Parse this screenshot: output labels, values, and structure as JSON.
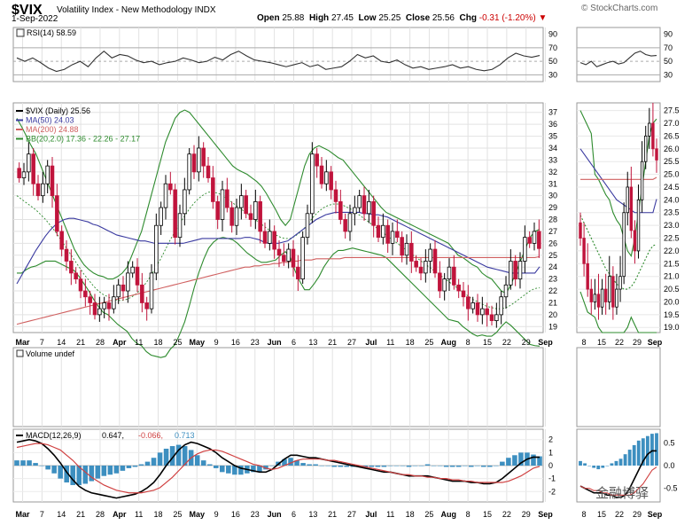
{
  "header": {
    "symbol": "$VIX",
    "name": "Volatility Index - New Methodology",
    "exchange": "INDX",
    "date": "1-Sep-2022",
    "source": "© StockCharts.com",
    "open_label": "Open",
    "open": "25.88",
    "high_label": "High",
    "high": "27.45",
    "low_label": "Low",
    "low": "25.25",
    "close_label": "Close",
    "close": "25.56",
    "chg_label": "Chg",
    "chg": "-0.31 (-1.20%)"
  },
  "watermark": "金融博驿",
  "colors": {
    "up": "#000000",
    "down": "#c0143c",
    "ma50": "#3a3aa0",
    "ma200": "#d06060",
    "bb": "#2e8b2e",
    "rsi": "#333333",
    "hist": "#3d8fc0",
    "macd": "#000000",
    "signal": "#d04040"
  },
  "chart_data": [
    {
      "panel": "rsi",
      "type": "line",
      "legend": "RSI(14) 58.59",
      "y_ticks": [
        90,
        70,
        50,
        30
      ],
      "levels": [
        70,
        50,
        30
      ],
      "values": [
        55,
        50,
        55,
        48,
        40,
        35,
        38,
        45,
        50,
        42,
        55,
        65,
        55,
        60,
        58,
        52,
        48,
        50,
        45,
        48,
        50,
        55,
        52,
        48,
        50,
        56,
        52,
        60,
        65,
        58,
        52,
        50,
        48,
        45,
        42,
        45,
        48,
        42,
        45,
        38,
        40,
        42,
        50,
        60,
        55,
        58,
        50,
        48,
        52,
        45,
        40,
        42,
        38,
        40,
        42,
        45,
        40,
        42,
        38,
        36,
        38,
        45,
        55,
        62,
        58,
        56,
        58.59
      ]
    },
    {
      "panel": "price",
      "type": "candlestick",
      "legend": [
        "$VIX (Daily) 25.56",
        "MA(50) 24.03",
        "MA(200) 24.88",
        "BB(20,2.0) 17.36 - 22.26 - 27.17"
      ],
      "y_ticks": [
        19,
        20,
        21,
        22,
        23,
        24,
        25,
        26,
        27,
        28,
        29,
        30,
        31,
        32,
        33,
        34,
        35,
        36,
        37
      ],
      "x_ticks": [
        "Mar",
        "7",
        "14",
        "21",
        "28",
        "Apr",
        "11",
        "18",
        "25",
        "May",
        "9",
        "16",
        "23",
        "Jun",
        "6",
        "13",
        "21",
        "27",
        "Jul",
        "11",
        "18",
        "25",
        "Aug",
        "8",
        "15",
        "22",
        "29",
        "Sep"
      ],
      "close": [
        31.5,
        32.0,
        33.5,
        31.0,
        30.0,
        31.0,
        32.5,
        30.0,
        27.0,
        25.5,
        24.5,
        23.5,
        23.0,
        22.0,
        21.5,
        21.0,
        20.0,
        20.5,
        21.0,
        20.5,
        21.5,
        22.5,
        22.0,
        23.5,
        24.0,
        22.5,
        21.0,
        20.5,
        23.5,
        27.5,
        29.0,
        31.0,
        30.5,
        26.5,
        28.5,
        30.5,
        33.5,
        32.0,
        34.0,
        32.5,
        31.5,
        29.5,
        28.0,
        30.5,
        29.0,
        27.5,
        29.0,
        30.0,
        28.5,
        28.0,
        29.5,
        27.0,
        26.0,
        27.0,
        25.5,
        25.0,
        24.5,
        25.5,
        24.0,
        23.0,
        26.5,
        28.5,
        33.5,
        32.5,
        31.0,
        32.0,
        30.5,
        29.5,
        28.0,
        27.0,
        28.5,
        29.0,
        30.0,
        28.5,
        29.5,
        27.5,
        26.5,
        27.5,
        26.0,
        27.0,
        26.5,
        25.0,
        26.0,
        24.5,
        24.0,
        23.5,
        24.5,
        25.5,
        23.5,
        22.0,
        23.0,
        24.0,
        22.5,
        22.0,
        21.5,
        20.5,
        21.0,
        20.0,
        20.5,
        20.0,
        19.5,
        20.0,
        21.5,
        22.5,
        24.5,
        23.0,
        24.5,
        26.5,
        26.0,
        27.0,
        25.56
      ],
      "ma50": [
        22.6,
        23.3,
        24.0,
        24.7,
        25.4,
        26.0,
        26.6,
        27.1,
        27.5,
        27.8,
        28.0,
        28.1,
        28.1,
        28.0,
        27.9,
        27.8,
        27.6,
        27.5,
        27.3,
        27.1,
        26.9,
        26.7,
        26.6,
        26.5,
        26.4,
        26.3,
        26.2,
        26.2,
        26.1,
        26.0,
        26.0,
        26.0,
        26.0,
        26.0,
        26.0,
        26.0,
        26.1,
        26.2,
        26.3,
        26.4,
        26.4,
        26.4,
        26.4,
        26.4,
        26.4,
        26.4,
        26.4,
        26.4,
        26.5,
        26.5,
        26.4,
        26.3,
        26.1,
        26.0,
        26.0,
        26.0,
        26.1,
        26.2,
        26.5,
        26.8,
        27.1,
        27.4,
        27.7,
        28.0,
        28.2,
        28.4,
        28.5,
        28.6,
        28.6,
        28.6,
        28.6,
        28.6,
        28.6,
        28.5,
        28.5,
        28.4,
        28.4,
        28.3,
        28.2,
        28.0,
        27.8,
        27.6,
        27.4,
        27.2,
        27.0,
        26.8,
        26.6,
        26.4,
        26.2,
        26.0,
        25.8,
        25.6,
        25.4,
        25.2,
        25.0,
        24.8,
        24.6,
        24.4,
        24.2,
        24.0,
        23.9,
        23.8,
        23.7,
        23.6,
        23.5,
        23.5,
        23.5,
        23.5,
        23.5,
        23.5,
        24.03
      ],
      "ma200": [
        19.2,
        19.3,
        19.4,
        19.5,
        19.6,
        19.7,
        19.8,
        19.9,
        20.0,
        20.1,
        20.2,
        20.3,
        20.4,
        20.5,
        20.6,
        20.7,
        20.8,
        20.9,
        21.0,
        21.1,
        21.2,
        21.3,
        21.4,
        21.5,
        21.6,
        21.7,
        21.8,
        21.9,
        22.0,
        22.1,
        22.2,
        22.3,
        22.4,
        22.5,
        22.6,
        22.7,
        22.8,
        22.9,
        23.0,
        23.1,
        23.2,
        23.3,
        23.4,
        23.5,
        23.6,
        23.7,
        23.8,
        23.9,
        24.0,
        24.0,
        24.1,
        24.1,
        24.2,
        24.2,
        24.3,
        24.3,
        24.4,
        24.4,
        24.5,
        24.5,
        24.6,
        24.6,
        24.6,
        24.7,
        24.7,
        24.7,
        24.7,
        24.7,
        24.7,
        24.8,
        24.8,
        24.8,
        24.8,
        24.8,
        24.8,
        24.8,
        24.8,
        24.8,
        24.8,
        24.8,
        24.8,
        24.8,
        24.8,
        24.8,
        24.8,
        24.8,
        24.8,
        24.8,
        24.8,
        24.8,
        24.8,
        24.8,
        24.8,
        24.8,
        24.8,
        24.8,
        24.8,
        24.8,
        24.8,
        24.8,
        24.8,
        24.8,
        24.8,
        24.8,
        24.8,
        24.8,
        24.8,
        24.8,
        24.8,
        24.8,
        24.88
      ],
      "bb_upper": [
        36.5,
        35.8,
        35.0,
        34.2,
        33.5,
        32.5,
        31.5,
        30.5,
        29.5,
        28.5,
        27.5,
        26.5,
        25.5,
        24.8,
        24.2,
        23.8,
        23.5,
        23.3,
        23.2,
        23.0,
        23.0,
        23.2,
        23.5,
        24.0,
        25.0,
        26.0,
        27.0,
        28.5,
        30.0,
        31.5,
        33.0,
        34.5,
        35.5,
        36.5,
        37.0,
        37.2,
        37.0,
        36.5,
        36.0,
        35.5,
        35.0,
        34.5,
        34.0,
        33.5,
        33.0,
        32.5,
        32.2,
        32.0,
        31.8,
        31.5,
        31.2,
        30.8,
        30.2,
        29.5,
        28.8,
        28.0,
        27.5,
        28.0,
        29.5,
        31.0,
        32.5,
        33.5,
        34.0,
        34.2,
        34.0,
        33.8,
        33.5,
        33.2,
        33.0,
        32.5,
        32.0,
        31.5,
        31.0,
        30.5,
        30.0,
        29.5,
        29.0,
        28.6,
        28.4,
        28.2,
        28.0,
        27.8,
        27.6,
        27.4,
        27.2,
        27.0,
        26.8,
        26.6,
        26.4,
        26.2,
        26.0,
        25.5,
        25.0,
        24.8,
        24.5,
        24.2,
        24.0,
        23.5,
        23.2,
        23.0,
        22.5,
        22.0,
        21.8,
        22.5,
        23.5,
        24.5,
        25.5,
        26.5,
        27.0,
        27.17
      ],
      "bb_mid": [
        30.0,
        29.7,
        29.4,
        29.1,
        28.8,
        28.4,
        28.0,
        27.5,
        27.0,
        26.4,
        25.8,
        25.2,
        24.6,
        24.0,
        23.4,
        22.9,
        22.4,
        22.0,
        21.7,
        21.5,
        21.3,
        21.2,
        21.2,
        21.3,
        21.5,
        21.8,
        22.2,
        22.7,
        23.3,
        24.0,
        24.7,
        25.5,
        26.3,
        27.0,
        27.7,
        28.3,
        28.9,
        29.4,
        29.8,
        30.1,
        30.3,
        30.3,
        30.2,
        30.0,
        29.7,
        29.4,
        29.1,
        28.8,
        28.5,
        28.2,
        27.9,
        27.6,
        27.3,
        27.0,
        26.7,
        26.5,
        26.4,
        26.4,
        26.6,
        26.9,
        27.3,
        27.8,
        28.3,
        28.7,
        29.0,
        29.2,
        29.3,
        29.3,
        29.2,
        29.0,
        28.8,
        28.5,
        28.2,
        27.9,
        27.6,
        27.3,
        27.0,
        26.7,
        26.4,
        26.1,
        25.8,
        25.5,
        25.2,
        24.9,
        24.6,
        24.3,
        24.0,
        23.7,
        23.4,
        23.1,
        22.8,
        22.5,
        22.2,
        21.9,
        21.6,
        21.3,
        21.1,
        20.9,
        20.7,
        20.6,
        20.5,
        20.5,
        20.6,
        20.8,
        21.1,
        21.4,
        21.7,
        22.0,
        22.2,
        22.26
      ],
      "bb_lower": [
        23.5,
        23.5,
        23.8,
        24.0,
        24.1,
        24.3,
        24.5,
        24.5,
        24.5,
        24.3,
        24.1,
        23.9,
        23.7,
        23.2,
        22.6,
        22.0,
        21.3,
        20.7,
        20.2,
        20.0,
        19.6,
        19.2,
        18.9,
        18.6,
        18.0,
        17.6,
        17.4,
        16.9,
        16.6,
        16.5,
        16.4,
        16.5,
        17.1,
        17.5,
        18.4,
        19.4,
        20.8,
        22.3,
        23.6,
        24.7,
        25.6,
        26.1,
        26.4,
        26.5,
        26.4,
        26.3,
        26.0,
        25.6,
        25.2,
        24.9,
        24.6,
        24.4,
        24.4,
        24.5,
        24.6,
        25.0,
        25.3,
        24.8,
        23.7,
        22.8,
        22.1,
        22.1,
        22.6,
        23.2,
        24.0,
        24.6,
        25.1,
        25.4,
        25.4,
        25.5,
        25.6,
        25.5,
        25.4,
        25.3,
        25.2,
        25.1,
        25.0,
        24.8,
        24.4,
        24.0,
        23.6,
        23.2,
        22.8,
        22.4,
        22.0,
        21.6,
        21.2,
        20.8,
        20.4,
        20.0,
        19.6,
        19.5,
        19.4,
        19.0,
        18.7,
        18.4,
        18.2,
        18.3,
        18.2,
        18.2,
        18.5,
        19.0,
        19.4,
        19.1,
        18.7,
        18.3,
        17.9,
        17.5,
        17.4,
        17.36
      ]
    },
    {
      "panel": "volume",
      "type": "text",
      "legend": "Volume undef"
    },
    {
      "panel": "macd",
      "type": "line",
      "legend_label": "MACD(12,26,9)",
      "legend_values": [
        "0.647",
        "-0.066",
        "0.713"
      ],
      "y_ticks": [
        2,
        1,
        0,
        -1,
        -2
      ],
      "macd": [
        1.8,
        1.9,
        2.0,
        1.9,
        1.7,
        1.3,
        0.8,
        0.2,
        -0.5,
        -1.1,
        -1.6,
        -1.9,
        -2.1,
        -2.2,
        -2.3,
        -2.4,
        -2.5,
        -2.4,
        -2.3,
        -2.2,
        -2.0,
        -1.7,
        -1.3,
        -0.7,
        0.0,
        0.6,
        1.2,
        1.6,
        1.8,
        1.7,
        1.5,
        1.3,
        1.0,
        0.6,
        0.3,
        0.0,
        -0.2,
        -0.3,
        -0.4,
        -0.5,
        -0.5,
        -0.3,
        0.1,
        0.5,
        0.8,
        0.8,
        0.7,
        0.6,
        0.6,
        0.5,
        0.4,
        0.3,
        0.2,
        0.1,
        0.0,
        -0.1,
        -0.2,
        -0.3,
        -0.4,
        -0.5,
        -0.5,
        -0.6,
        -0.7,
        -0.8,
        -0.8,
        -0.8,
        -0.8,
        -0.9,
        -1.0,
        -1.1,
        -1.2,
        -1.2,
        -1.2,
        -1.3,
        -1.3,
        -1.4,
        -1.4,
        -1.3,
        -1.0,
        -0.6,
        -0.2,
        0.2,
        0.5,
        0.65,
        0.647
      ],
      "signal": [
        1.4,
        1.5,
        1.6,
        1.7,
        1.7,
        1.6,
        1.4,
        1.2,
        0.8,
        0.4,
        -0.1,
        -0.5,
        -0.9,
        -1.2,
        -1.5,
        -1.7,
        -1.9,
        -2.0,
        -2.1,
        -2.1,
        -2.1,
        -2.0,
        -1.9,
        -1.7,
        -1.3,
        -0.9,
        -0.4,
        0.1,
        0.6,
        0.9,
        1.1,
        1.2,
        1.2,
        1.1,
        0.9,
        0.7,
        0.5,
        0.3,
        0.1,
        0.0,
        -0.2,
        -0.3,
        -0.2,
        0.0,
        0.2,
        0.4,
        0.5,
        0.5,
        0.5,
        0.5,
        0.4,
        0.4,
        0.3,
        0.2,
        0.1,
        0.0,
        -0.1,
        -0.2,
        -0.3,
        -0.4,
        -0.5,
        -0.6,
        -0.7,
        -0.7,
        -0.8,
        -0.8,
        -0.9,
        -0.9,
        -1.0,
        -1.0,
        -1.1,
        -1.1,
        -1.2,
        -1.2,
        -1.3,
        -1.3,
        -1.3,
        -1.3,
        -1.3,
        -1.2,
        -1.0,
        -0.8,
        -0.5,
        -0.2,
        -0.066
      ],
      "x_ticks": [
        "Mar",
        "7",
        "14",
        "21",
        "28",
        "Apr",
        "11",
        "18",
        "25",
        "May",
        "9",
        "16",
        "23",
        "Jun",
        "6",
        "13",
        "21",
        "27",
        "Jul",
        "11",
        "18",
        "25",
        "Aug",
        "8",
        "15",
        "22",
        "29",
        "Sep"
      ]
    },
    {
      "panel": "zoom-rsi",
      "type": "line",
      "y_ticks": [
        90,
        70,
        50,
        30
      ],
      "values": [
        48,
        45,
        50,
        42,
        45,
        48,
        50,
        46,
        48,
        55,
        62,
        65,
        60,
        58,
        58.59
      ]
    },
    {
      "panel": "zoom-price",
      "type": "candlestick",
      "y_ticks": [
        19.0,
        19.5,
        20.0,
        20.5,
        21.0,
        21.5,
        22.0,
        22.5,
        23.0,
        23.5,
        24.0,
        24.5,
        25.0,
        25.5,
        26.0,
        26.5,
        27.0,
        27.5
      ],
      "x_ticks": [
        "8",
        "15",
        "22",
        "29",
        "Sep"
      ],
      "close": [
        22.5,
        21.5,
        20.5,
        20.0,
        20.3,
        19.8,
        20.5,
        20.0,
        21.0,
        19.8,
        20.5,
        21.0,
        23.5,
        24.5,
        22.8,
        22.0,
        24.0,
        25.5,
        26.5,
        27.0,
        26.0,
        25.56
      ]
    },
    {
      "panel": "zoom-macd",
      "type": "histogram",
      "y_ticks": [
        0.5,
        0.0,
        -0.5
      ],
      "hist": [
        0.1,
        0.05,
        0.0,
        -0.05,
        -0.08,
        -0.05,
        0.0,
        0.05,
        0.1,
        0.15,
        0.25,
        0.35,
        0.45,
        0.55,
        0.6,
        0.65,
        0.7,
        0.713
      ]
    }
  ]
}
